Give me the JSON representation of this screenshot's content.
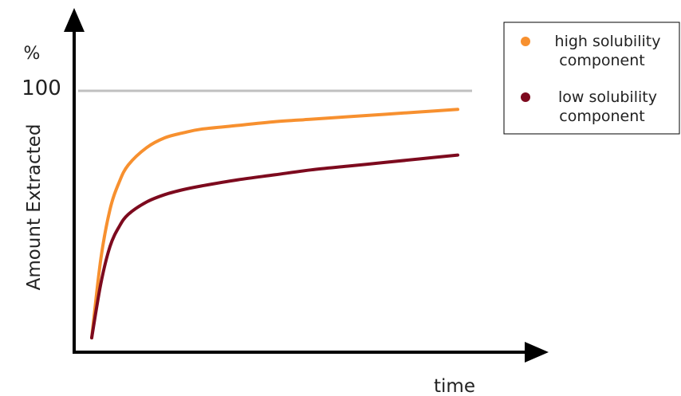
{
  "chart_data": {
    "type": "line",
    "xlabel": "time",
    "ylabel": "Amount Extracted",
    "yunit": "%",
    "ytick": "100",
    "reference_line": {
      "y": 100,
      "color": "#c0c0c0"
    },
    "ylim": [
      0,
      100
    ],
    "xlim": [
      0,
      10
    ],
    "legend_position": "top-right",
    "grid": false,
    "series": [
      {
        "name": "high solubility component",
        "color": "#f7902f",
        "x": [
          0,
          0.25,
          0.5,
          0.75,
          1,
          1.5,
          2,
          2.5,
          3,
          4,
          5,
          6,
          7,
          8,
          9,
          10
        ],
        "y": [
          0,
          32,
          52,
          63,
          70,
          77,
          81,
          83,
          84.5,
          86,
          87.5,
          88.5,
          89.5,
          90.5,
          91.5,
          92.5
        ]
      },
      {
        "name": "low solubility component",
        "color": "#7d0a1e",
        "x": [
          0,
          0.25,
          0.5,
          0.75,
          1,
          1.5,
          2,
          2.5,
          3,
          4,
          5,
          6,
          7,
          8,
          9,
          10
        ],
        "y": [
          0,
          22,
          37,
          45,
          50,
          55,
          58,
          60,
          61.5,
          64,
          66,
          68,
          69.5,
          71,
          72.5,
          74
        ]
      }
    ]
  }
}
